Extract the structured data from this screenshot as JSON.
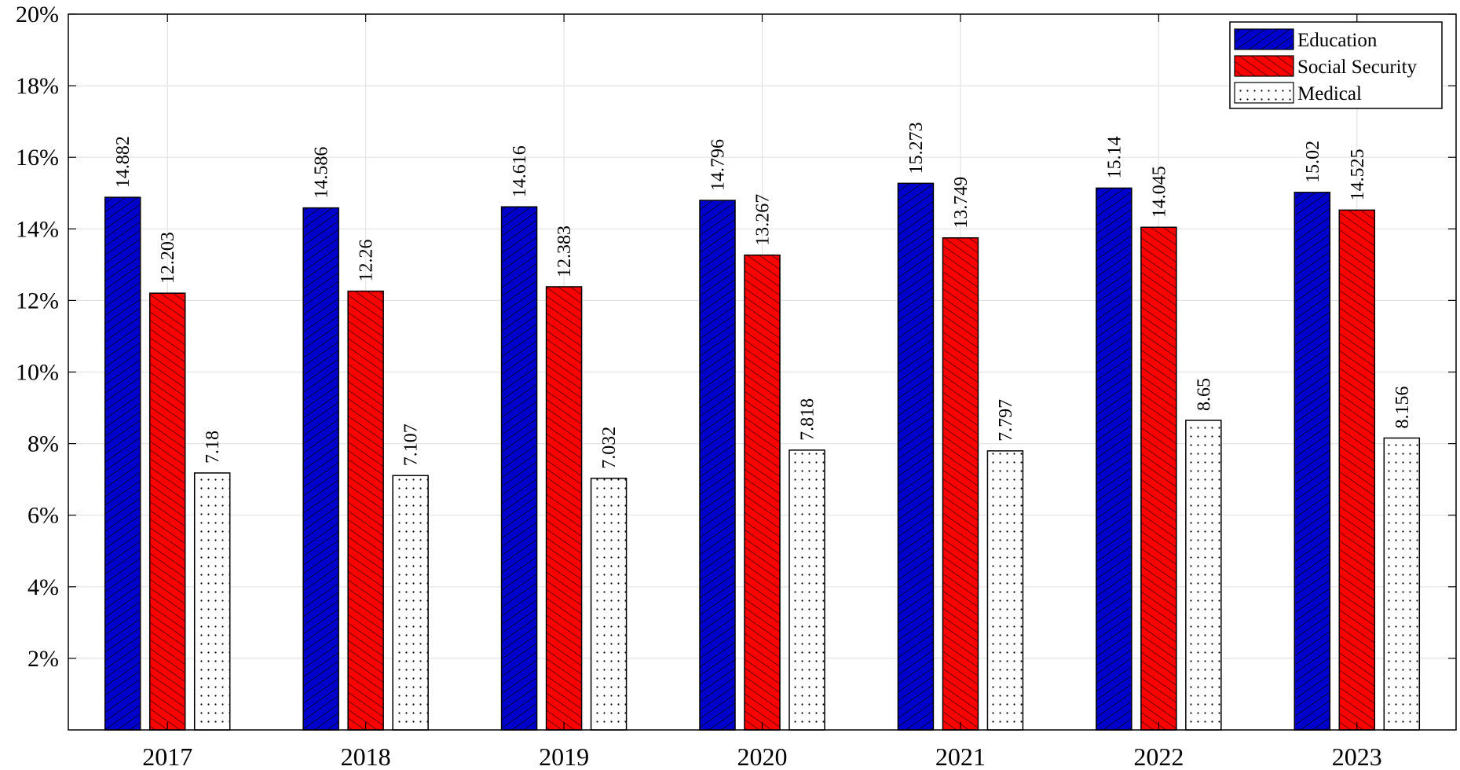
{
  "chart_data": {
    "type": "bar",
    "title": "",
    "xlabel": "",
    "ylabel": "",
    "categories": [
      "2017",
      "2018",
      "2019",
      "2020",
      "2021",
      "2022",
      "2023"
    ],
    "ylim": [
      0,
      20
    ],
    "yticks": [
      2,
      4,
      6,
      8,
      10,
      12,
      14,
      16,
      18,
      20
    ],
    "ytick_labels": [
      "2%",
      "4%",
      "6%",
      "8%",
      "10%",
      "12%",
      "14%",
      "16%",
      "18%",
      "20%"
    ],
    "grid": true,
    "legend_position": "top-right",
    "series": [
      {
        "name": "Education",
        "color": "#0000cc",
        "pattern": "diagonal-hatch",
        "values": [
          14.882,
          14.586,
          14.616,
          14.796,
          15.273,
          15.14,
          15.02
        ],
        "labels": [
          "14.882",
          "14.586",
          "14.616",
          "14.796",
          "15.273",
          "15.14",
          "15.02"
        ]
      },
      {
        "name": "Social Security",
        "color": "#ff0000",
        "pattern": "diagonal-hatch",
        "values": [
          12.203,
          12.26,
          12.383,
          13.267,
          13.749,
          14.045,
          14.525
        ],
        "labels": [
          "12.203",
          "12.26",
          "12.383",
          "13.267",
          "13.749",
          "14.045",
          "14.525"
        ]
      },
      {
        "name": "Medical",
        "color": "#ffffff",
        "pattern": "dots",
        "values": [
          7.18,
          7.107,
          7.032,
          7.818,
          7.797,
          8.65,
          8.156
        ],
        "labels": [
          "7.18",
          "7.107",
          "7.032",
          "7.818",
          "7.797",
          "8.65",
          "8.156"
        ]
      }
    ]
  }
}
